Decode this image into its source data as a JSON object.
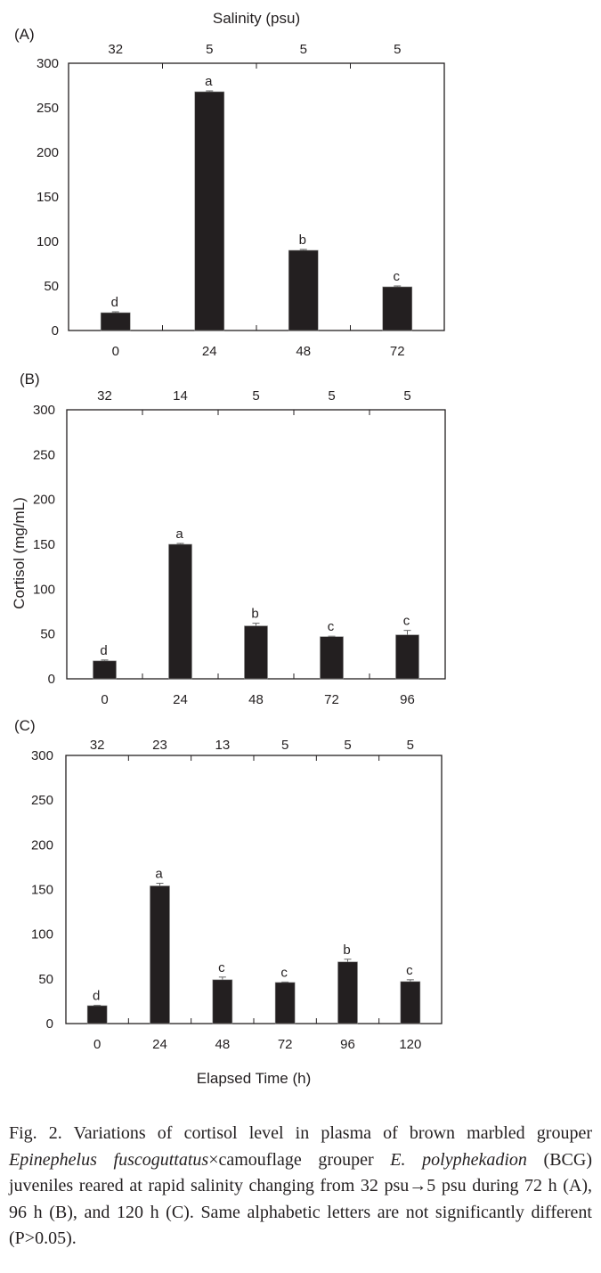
{
  "chart_data": [
    {
      "type": "bar",
      "panel_label": "(A)",
      "top_axis_title": "Salinity (psu)",
      "categories": [
        "0",
        "24",
        "48",
        "72"
      ],
      "salinity": [
        "32",
        "5",
        "5",
        "5"
      ],
      "values": [
        20,
        268,
        90,
        49
      ],
      "errors": [
        1,
        1,
        1,
        1
      ],
      "letters": [
        "d",
        "a",
        "b",
        "c"
      ],
      "yticks": [
        "0",
        "50",
        "100",
        "150",
        "200",
        "250",
        "300"
      ],
      "ylim": [
        0,
        300
      ],
      "ylabel": "",
      "xlabel": ""
    },
    {
      "type": "bar",
      "panel_label": "(B)",
      "categories": [
        "0",
        "24",
        "48",
        "72",
        "96"
      ],
      "salinity": [
        "32",
        "14",
        "5",
        "5",
        "5"
      ],
      "values": [
        20,
        150,
        59,
        47,
        49
      ],
      "errors": [
        1,
        1,
        3,
        0.5,
        5
      ],
      "letters": [
        "d",
        "a",
        "b",
        "c",
        "c"
      ],
      "yticks": [
        "0",
        "50",
        "100",
        "150",
        "200",
        "250",
        "300"
      ],
      "ylim": [
        0,
        300
      ],
      "ylabel": "Cortisol (mg/mL)",
      "xlabel": ""
    },
    {
      "type": "bar",
      "panel_label": "(C)",
      "categories": [
        "0",
        "24",
        "48",
        "72",
        "96",
        "120"
      ],
      "salinity": [
        "32",
        "23",
        "13",
        "5",
        "5",
        "5"
      ],
      "values": [
        20,
        154,
        49,
        46,
        69,
        47
      ],
      "errors": [
        0.5,
        3,
        3,
        0.5,
        3,
        2
      ],
      "letters": [
        "d",
        "a",
        "c",
        "c",
        "b",
        "c"
      ],
      "yticks": [
        "0",
        "50",
        "100",
        "150",
        "200",
        "250",
        "300"
      ],
      "ylim": [
        0,
        300
      ],
      "ylabel": "",
      "xlabel": "Elapsed Time (h)"
    }
  ],
  "caption": {
    "p1": "Fig. 2. Variations of cortisol level in plasma of brown marbled grouper ",
    "species1": "Epinephelus fuscoguttatus",
    "p2": "×camouflage grouper ",
    "species2": "E. polyphekadion",
    "p3": " (BCG) juveniles reared at rapid salinity changing from 32 psu→5 psu during 72 h (A), 96 h (B), and 120 h (C). Same alphabetic letters are not significantly different (P>0.05)."
  },
  "colors": {
    "bar": "#231f20",
    "axis": "#231f20"
  }
}
